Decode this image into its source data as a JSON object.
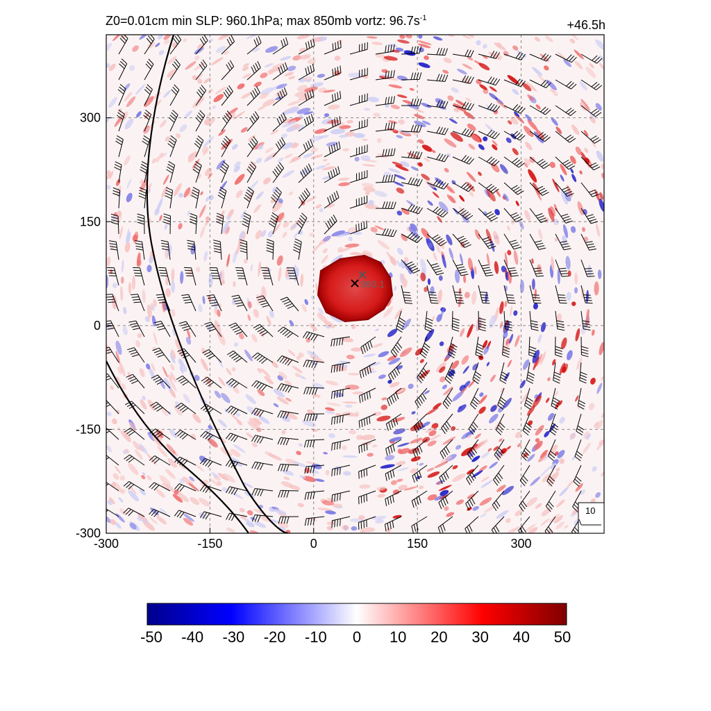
{
  "title": {
    "prefix": "Z0=0.01cm  min SLP: 960.1hPa; max 850mb vortz:  96.7s",
    "exponent": "-1",
    "time": "+46.5h"
  },
  "axes": {
    "x_ticks": [
      "-300",
      "-150",
      "0",
      "150",
      "300"
    ],
    "y_ticks": [
      "300",
      "150",
      "0",
      "-150",
      "-300"
    ],
    "x_range": [
      -300,
      420
    ],
    "y_range": [
      -300,
      420
    ]
  },
  "center_marker": {
    "label": "960.1",
    "x": 60,
    "y": 60
  },
  "reference_barb_label": "10",
  "colorbar": {
    "ticks": [
      "-50",
      "-40",
      "-30",
      "-20",
      "-10",
      "0",
      "10",
      "20",
      "30",
      "40",
      "50"
    ],
    "colors": [
      "#00008b",
      "#0000ff",
      "#ffffff",
      "#ff0000",
      "#7f0000"
    ]
  }
}
